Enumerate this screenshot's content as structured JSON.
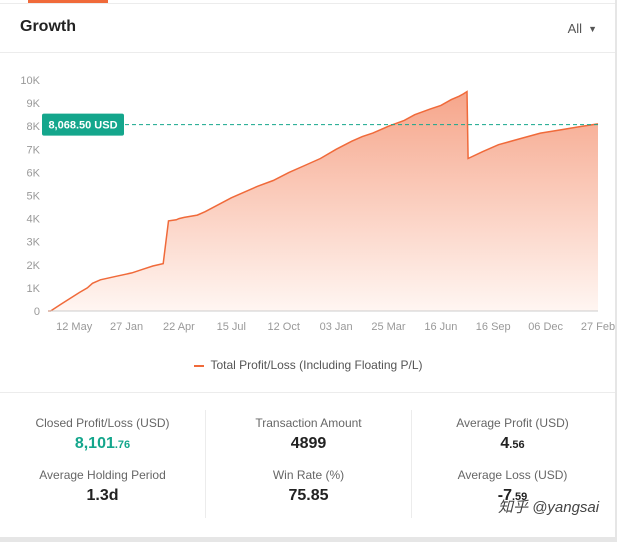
{
  "header": {
    "title": "Growth",
    "filter_label": "All"
  },
  "chart_data": {
    "type": "area",
    "title": "Growth",
    "x_ticks": [
      "12 May",
      "27 Jan",
      "22 Apr",
      "15 Jul",
      "12 Oct",
      "03 Jan",
      "25 Mar",
      "16 Jun",
      "16 Sep",
      "06 Dec",
      "27 Feb"
    ],
    "y_ticks": [
      "0",
      "1K",
      "2K",
      "3K",
      "4K",
      "5K",
      "6K",
      "7K",
      "8K",
      "9K",
      "10K"
    ],
    "ylim": [
      0,
      10000
    ],
    "current_value": 8068.5,
    "current_label": "8,068.50 USD",
    "series": [
      {
        "name": "Total Profit/Loss (Including Floating P/L)",
        "color": "#f06a3a",
        "x": [
          0,
          0.05,
          0.25,
          0.6,
          0.75,
          0.85,
          1.0,
          1.3,
          1.6,
          1.8,
          2.0,
          2.2,
          2.3,
          2.45,
          2.5,
          2.6,
          2.85,
          3.0,
          3.5,
          4.0,
          4.3,
          4.6,
          4.9,
          5.2,
          5.5,
          5.8,
          6.0,
          6.2,
          6.5,
          6.8,
          7.0,
          7.3,
          7.5,
          7.7,
          7.85,
          7.93,
          8.0,
          8.02,
          8.3,
          8.6,
          9.0,
          9.4,
          9.8,
          10.2,
          10.5
        ],
        "values": [
          0,
          0,
          300,
          800,
          1000,
          1200,
          1350,
          1500,
          1650,
          1800,
          1950,
          2050,
          3900,
          3950,
          4000,
          4050,
          4150,
          4300,
          4900,
          5400,
          5650,
          6000,
          6300,
          6600,
          7000,
          7350,
          7550,
          7700,
          8000,
          8250,
          8500,
          8750,
          8900,
          9150,
          9300,
          9400,
          9500,
          6600,
          6900,
          7200,
          7450,
          7700,
          7850,
          8000,
          8100
        ]
      }
    ],
    "legend_position": "bottom",
    "grid": false
  },
  "stats": {
    "closed_profit_label": "Closed Profit/Loss (USD)",
    "closed_profit_main": "8,101",
    "closed_profit_dec": ".76",
    "transaction_label": "Transaction Amount",
    "transaction_value": "4899",
    "avg_profit_label": "Average Profit (USD)",
    "avg_profit_main": "4",
    "avg_profit_dec": ".56",
    "avg_holding_label": "Average Holding Period",
    "avg_holding_value": "1.3d",
    "win_rate_label": "Win Rate (%)",
    "win_rate_value": "75.85",
    "avg_loss_label": "Average Loss (USD)",
    "avg_loss_main": "-7",
    "avg_loss_dec": ".59"
  },
  "watermark": "知乎 @yangsai",
  "colors": {
    "accent": "#f06a3a",
    "badge": "#14a68c",
    "area_top": "#f6a58a",
    "area_bottom": "#fff6f2"
  }
}
